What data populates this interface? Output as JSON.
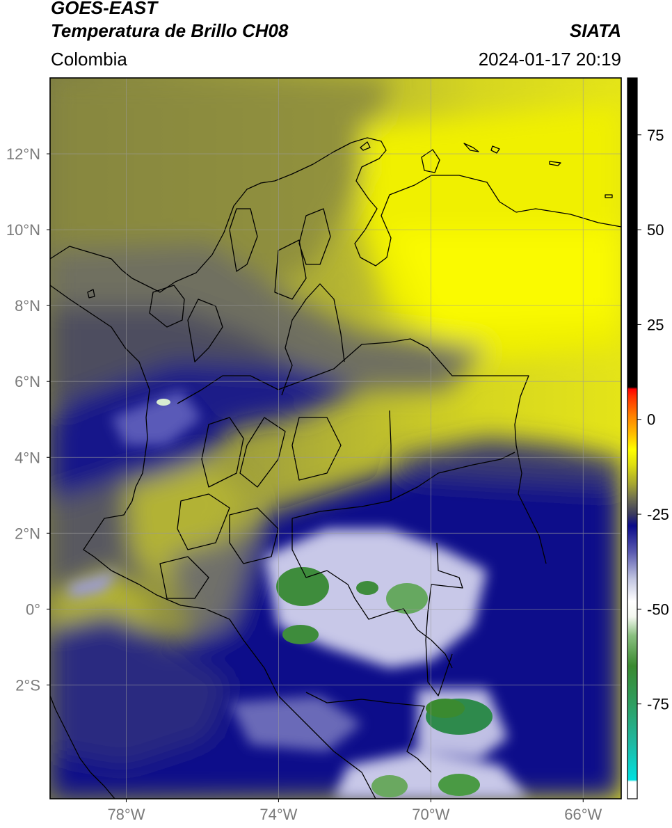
{
  "header": {
    "satellite": "GOES-EAST",
    "product": "Temperatura de Brillo CH08",
    "organization": "SIATA",
    "region": "Colombia",
    "timestamp": "2024-01-17 20:19"
  },
  "map": {
    "lon_range": [
      -80,
      -65
    ],
    "lat_range": [
      -5,
      14
    ],
    "lon_ticks": [
      {
        "value": -78,
        "label": "78°W"
      },
      {
        "value": -74,
        "label": "74°W"
      },
      {
        "value": -70,
        "label": "70°W"
      },
      {
        "value": -66,
        "label": "66°W"
      }
    ],
    "lat_ticks": [
      {
        "value": 12,
        "label": "12°N"
      },
      {
        "value": 10,
        "label": "10°N"
      },
      {
        "value": 8,
        "label": "8°N"
      },
      {
        "value": 6,
        "label": "6°N"
      },
      {
        "value": 4,
        "label": "4°N"
      },
      {
        "value": 2,
        "label": "2°N"
      },
      {
        "value": 0,
        "label": "0°"
      },
      {
        "value": -2,
        "label": "2°S"
      }
    ],
    "gridlines": true
  },
  "colorbar": {
    "range": [
      -100,
      90
    ],
    "ticks": [
      {
        "value": 75,
        "label": "75"
      },
      {
        "value": 50,
        "label": "50"
      },
      {
        "value": 25,
        "label": "25"
      },
      {
        "value": 0,
        "label": "0"
      },
      {
        "value": -25,
        "label": "-25"
      },
      {
        "value": -50,
        "label": "-50"
      },
      {
        "value": -75,
        "label": "-75"
      }
    ],
    "stops": [
      {
        "value": -100,
        "color": "#ffffff"
      },
      {
        "value": -95.5,
        "color": "#ffffff"
      },
      {
        "value": -95,
        "color": "#00e0e0"
      },
      {
        "value": -85,
        "color": "#20b8a0"
      },
      {
        "value": -75,
        "color": "#2e9e60"
      },
      {
        "value": -65,
        "color": "#3a8a30"
      },
      {
        "value": -57,
        "color": "#8ac080"
      },
      {
        "value": -52,
        "color": "#f4f8f0"
      },
      {
        "value": -48,
        "color": "#ffffff"
      },
      {
        "value": -42,
        "color": "#c0c4e0"
      },
      {
        "value": -35,
        "color": "#5a5ab0"
      },
      {
        "value": -28,
        "color": "#0a0a8a"
      },
      {
        "value": -25,
        "color": "#3a3a5e"
      },
      {
        "value": -21,
        "color": "#6e6e50"
      },
      {
        "value": -17,
        "color": "#a6a630"
      },
      {
        "value": -12,
        "color": "#dede10"
      },
      {
        "value": -8,
        "color": "#ffff00"
      },
      {
        "value": -4,
        "color": "#ffc000"
      },
      {
        "value": 1,
        "color": "#ff8000"
      },
      {
        "value": 6,
        "color": "#ff3000"
      },
      {
        "value": 8,
        "color": "#ff0000"
      },
      {
        "value": 8.5,
        "color": "#000000"
      },
      {
        "value": 90,
        "color": "#000000"
      }
    ]
  },
  "colors": {
    "cold_cloud_blue": "#0a0a8a",
    "deep_convection_green": "#3a8a30",
    "dry_yellow": "#f0f000",
    "moist_olive": "#6e6e50"
  }
}
